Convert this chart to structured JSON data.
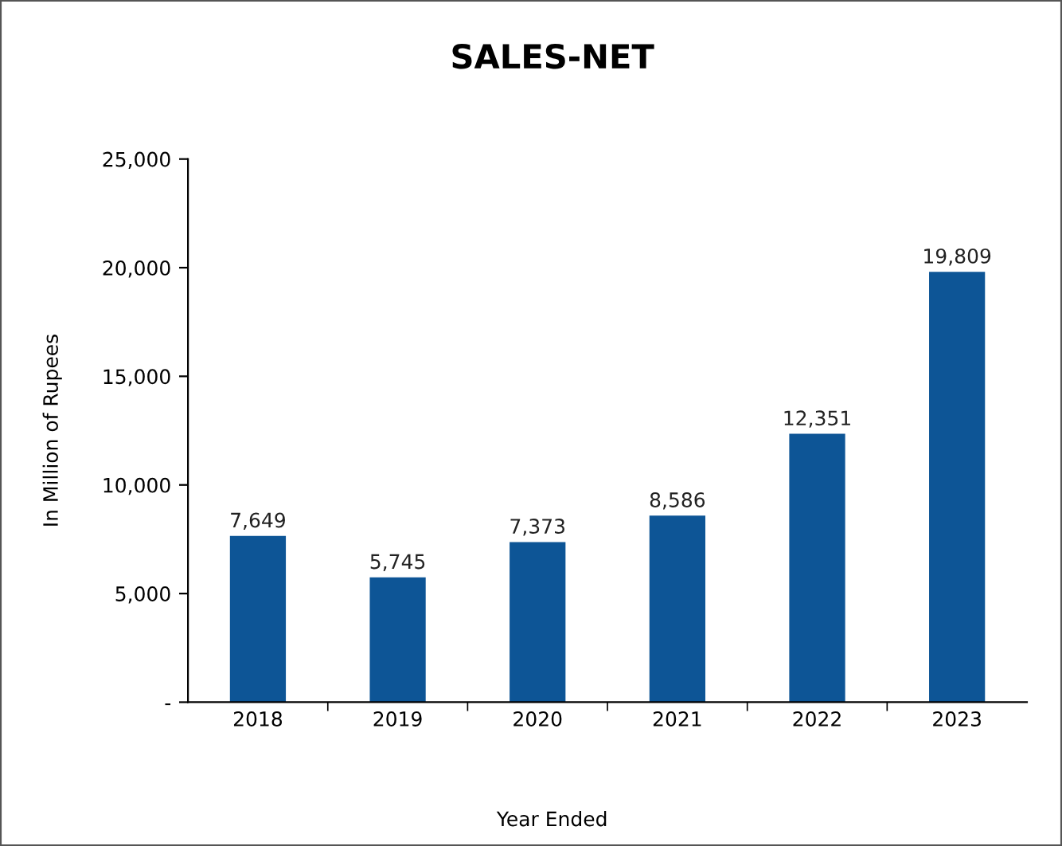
{
  "chart_data": {
    "type": "bar",
    "title": "SALES-NET",
    "xlabel": "Year Ended",
    "ylabel": "In Million of Rupees",
    "categories": [
      "2018",
      "2019",
      "2020",
      "2021",
      "2022",
      "2023"
    ],
    "values": [
      7649,
      5745,
      7373,
      8586,
      12351,
      19809
    ],
    "value_labels": [
      "7,649",
      "5,745",
      "7,373",
      "8,586",
      "12,351",
      "19,809"
    ],
    "color": "#0d5596",
    "ylim": [
      0,
      25000
    ],
    "yticks": [
      {
        "value": 0,
        "label": "-"
      },
      {
        "value": 5000,
        "label": "5,000"
      },
      {
        "value": 10000,
        "label": "10,000"
      },
      {
        "value": 15000,
        "label": "15,000"
      },
      {
        "value": 20000,
        "label": "20,000"
      },
      {
        "value": 25000,
        "label": "25,000"
      }
    ],
    "grid": false,
    "legend": false
  }
}
